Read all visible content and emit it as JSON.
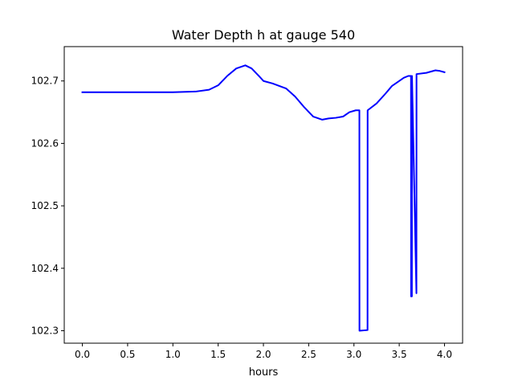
{
  "chart_data": {
    "type": "line",
    "title": "Water Depth h at gauge 540",
    "xlabel": "hours",
    "ylabel": "",
    "xlim": [
      -0.2,
      4.2
    ],
    "ylim": [
      102.28,
      102.755
    ],
    "grid": false,
    "legend": "none",
    "xticks": [
      0.0,
      0.5,
      1.0,
      1.5,
      2.0,
      2.5,
      3.0,
      3.5,
      4.0
    ],
    "xtick_labels": [
      "0.0",
      "0.5",
      "1.0",
      "1.5",
      "2.0",
      "2.5",
      "3.0",
      "3.5",
      "4.0"
    ],
    "yticks": [
      102.3,
      102.4,
      102.5,
      102.6,
      102.7
    ],
    "ytick_labels": [
      "102.3",
      "102.4",
      "102.5",
      "102.6",
      "102.7"
    ],
    "series": [
      {
        "color": "#0000ff",
        "x": [
          0.0,
          0.5,
          1.0,
          1.25,
          1.4,
          1.5,
          1.6,
          1.7,
          1.8,
          1.87,
          1.95,
          2.0,
          2.1,
          2.25,
          2.35,
          2.45,
          2.55,
          2.65,
          2.72,
          2.8,
          2.88,
          2.95,
          3.02,
          3.06,
          3.061,
          3.15,
          3.151,
          3.25,
          3.35,
          3.42,
          3.48,
          3.55,
          3.6,
          3.63,
          3.631,
          3.64,
          3.641,
          3.69,
          3.691,
          3.8,
          3.9,
          3.95,
          4.0
        ],
        "y": [
          102.682,
          102.682,
          102.682,
          102.683,
          102.686,
          102.693,
          102.708,
          102.72,
          102.725,
          102.72,
          102.708,
          102.7,
          102.696,
          102.688,
          102.675,
          102.658,
          102.643,
          102.638,
          102.64,
          102.641,
          102.643,
          102.65,
          102.653,
          102.653,
          102.3,
          102.301,
          102.653,
          102.664,
          102.68,
          102.692,
          102.698,
          102.705,
          102.708,
          102.708,
          102.355,
          102.355,
          102.708,
          102.36,
          102.711,
          102.713,
          102.717,
          102.716,
          102.714
        ]
      }
    ]
  }
}
